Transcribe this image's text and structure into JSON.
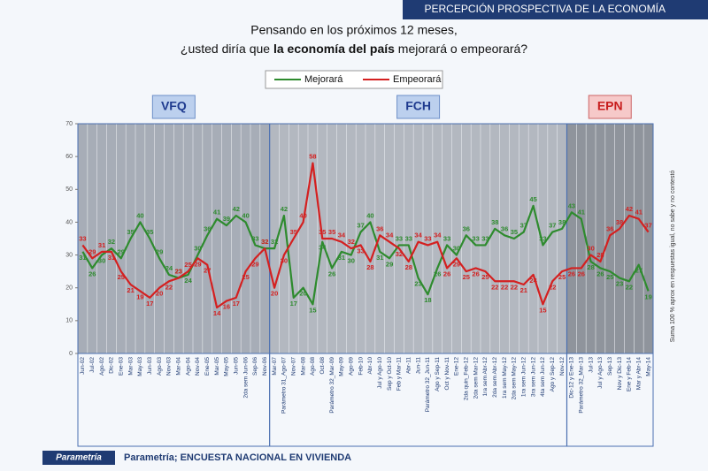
{
  "header": "PERCEPCIÓN PROSPECTIVA DE LA ECONOMÍA",
  "chart_data": {
    "type": "line",
    "title": [
      "Pensando en los próximos 12 meses,",
      "¿usted diría que",
      "la economía del país",
      "mejorará o empeorará?"
    ],
    "periods": [
      "VFQ",
      "FCH",
      "EPN"
    ],
    "side_note": "Suma 100 % aprox en respuestas igual, no sabe y no contestó",
    "categories": [
      "Jun-02",
      "Jul-02",
      "Ago-02",
      "Dic-02",
      "Ene-03",
      "Mar-03",
      "May-03",
      "Jun-03",
      "Ago-03",
      "Nov-03",
      "Mar-04",
      "Ago-04",
      "Nov-04",
      "Ene-05",
      "Mar-05",
      "May-05",
      "Jun-05",
      "2da sem Jun-06",
      "Sep-06",
      "Nov-06",
      "Mar-07",
      "Parámetro 31_Ago-07",
      "Nov-07",
      "Mar-08",
      "Ago-08",
      "Oct-08",
      "Parámetro 32_Mar-09",
      "May-09",
      "Ago-09",
      "Feb-10",
      "Abr-10",
      "Jul y Ago-10",
      "Sep y Oct-10",
      "Feb y Mar-11",
      "Abr-11",
      "Jun-11",
      "Parámetro 32_Jun-11",
      "Ago y Sep-11",
      "Oct y Nov-11",
      "Ene-12",
      "2da quin_Feb-12",
      "2da sem Mar-12",
      "1ra sem Abr-12",
      "2da sem Abr-12",
      "1ra sem May-12",
      "2da sem May-12",
      "1ra sem Jun-12",
      "3ra sem Jun-12",
      "4ta sem Jun-12",
      "Ago y Sep-12",
      "Nov-12",
      "Dic-12 y Ene-13",
      "Parámetro 32_Mar-13",
      "Jul-13",
      "Jul y Ago-13",
      "Sep-13",
      "Nov y Dic-13",
      "Ene y Feb-14",
      "Mar y Abr-14",
      "May-14"
    ],
    "series": [
      {
        "name": "Mejorará",
        "color": "#2e8b2e",
        "values": [
          31,
          26,
          30,
          32,
          29,
          35,
          40,
          35,
          29,
          24,
          23,
          24,
          30,
          36,
          41,
          39,
          42,
          40,
          33,
          32,
          32,
          42,
          17,
          20,
          15,
          34,
          26,
          31,
          30,
          37,
          40,
          31,
          29,
          33,
          33,
          23,
          18,
          26,
          33,
          30,
          36,
          33,
          33,
          38,
          36,
          35,
          37,
          45,
          33,
          37,
          38,
          43,
          41,
          28,
          26,
          25,
          23,
          22,
          27,
          19
        ]
      },
      {
        "name": "Empeorará",
        "color": "#d42020",
        "values": [
          33,
          29,
          31,
          31,
          25,
          21,
          19,
          17,
          20,
          22,
          23,
          25,
          29,
          27,
          14,
          16,
          17,
          25,
          29,
          32,
          20,
          30,
          35,
          40,
          58,
          35,
          35,
          34,
          32,
          33,
          28,
          36,
          34,
          32,
          28,
          34,
          33,
          34,
          26,
          29,
          25,
          26,
          25,
          22,
          22,
          22,
          21,
          24,
          15,
          22,
          25,
          26,
          26,
          30,
          28,
          36,
          38,
          42,
          41,
          37
        ]
      }
    ],
    "ylim": [
      0,
      70
    ],
    "yticks": [
      0,
      10,
      20,
      30,
      40,
      50,
      60,
      70
    ],
    "grid": true
  },
  "footer": {
    "logo": "Parametría",
    "source": "Parametría; ENCUESTA NACIONAL  EN VIVIENDA"
  }
}
